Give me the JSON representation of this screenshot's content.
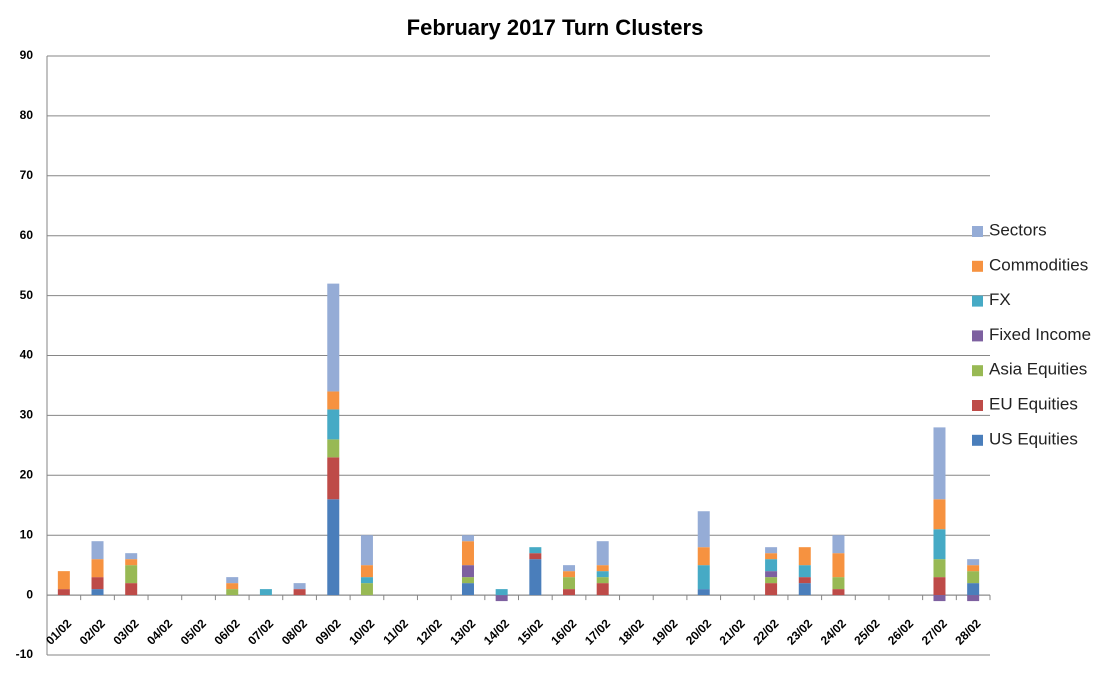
{
  "chart_data": {
    "type": "stacked-bar",
    "title": "February 2017 Turn Clusters",
    "categories": [
      "01/02",
      "02/02",
      "03/02",
      "04/02",
      "05/02",
      "06/02",
      "07/02",
      "08/02",
      "09/02",
      "10/02",
      "11/02",
      "12/02",
      "13/02",
      "14/02",
      "15/02",
      "16/02",
      "17/02",
      "18/02",
      "19/02",
      "20/02",
      "21/02",
      "22/02",
      "23/02",
      "24/02",
      "25/02",
      "26/02",
      "27/02",
      "28/02"
    ],
    "series": [
      {
        "name": "US Equities",
        "color": "#4a7ebb",
        "values": [
          0,
          1,
          0,
          0,
          0,
          0,
          0,
          0,
          16,
          0,
          0,
          0,
          2,
          0,
          6,
          0,
          0,
          0,
          0,
          1,
          0,
          0,
          2,
          0,
          0,
          0,
          0,
          2
        ]
      },
      {
        "name": "EU Equities",
        "color": "#be4b48",
        "values": [
          1,
          2,
          2,
          0,
          0,
          0,
          0,
          1,
          7,
          0,
          0,
          0,
          0,
          0,
          1,
          1,
          2,
          0,
          0,
          0,
          0,
          2,
          1,
          1,
          0,
          0,
          3,
          0
        ]
      },
      {
        "name": "Asia Equities",
        "color": "#98b954",
        "values": [
          0,
          0,
          3,
          0,
          0,
          1,
          0,
          0,
          3,
          2,
          0,
          0,
          1,
          0,
          0,
          2,
          1,
          0,
          0,
          0,
          0,
          1,
          0,
          2,
          0,
          0,
          3,
          2
        ]
      },
      {
        "name": "Fixed Income",
        "color": "#7d60a0",
        "values": [
          0,
          0,
          0,
          0,
          0,
          0,
          0,
          0,
          0,
          0,
          0,
          0,
          2,
          -1,
          0,
          0,
          0,
          0,
          0,
          0,
          0,
          1,
          0,
          0,
          0,
          0,
          -1,
          -1
        ]
      },
      {
        "name": "FX",
        "color": "#46aac5",
        "values": [
          0,
          0,
          0,
          0,
          0,
          0,
          1,
          0,
          5,
          1,
          0,
          0,
          0,
          1,
          1,
          0,
          1,
          0,
          0,
          4,
          0,
          2,
          2,
          0,
          0,
          0,
          5,
          0
        ]
      },
      {
        "name": "Commodities",
        "color": "#f69240",
        "values": [
          3,
          3,
          1,
          0,
          0,
          1,
          0,
          0,
          3,
          2,
          0,
          0,
          4,
          0,
          0,
          1,
          1,
          0,
          0,
          3,
          0,
          1,
          3,
          4,
          0,
          0,
          5,
          1
        ]
      },
      {
        "name": "Sectors",
        "color": "#95acd6",
        "values": [
          0,
          3,
          1,
          0,
          0,
          1,
          0,
          1,
          18,
          5,
          0,
          0,
          1,
          0,
          0,
          1,
          4,
          0,
          0,
          6,
          0,
          1,
          0,
          3,
          0,
          0,
          12,
          1
        ]
      }
    ],
    "ylim": [
      -10,
      90
    ],
    "yticks": [
      -10,
      0,
      10,
      20,
      30,
      40,
      50,
      60,
      70,
      80,
      90
    ],
    "grid": true
  }
}
